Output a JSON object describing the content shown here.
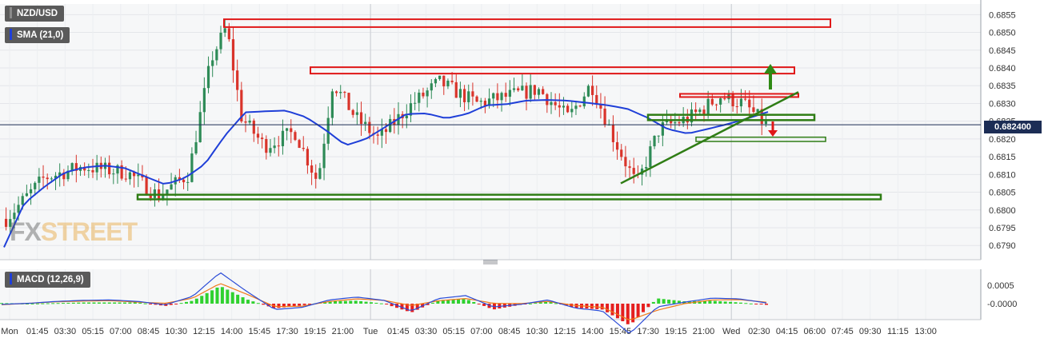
{
  "symbol": "NZD/USD",
  "indicator_label": "SMA (21,0)",
  "macd_label": "MACD (12,26,9)",
  "current_price": "0.682400",
  "watermark": "FXSTREET",
  "colors": {
    "bull": "#2e8b57",
    "bear": "#d9342b",
    "sma": "#1f3fd8",
    "resistance": "#e01818",
    "support": "#2f7d15",
    "macd_line": "#2a4bd7",
    "signal_line": "#f07a1a",
    "hist_pos": "#2fd12f",
    "hist_neg": "#e51f1f"
  },
  "chart_data": {
    "type": "candlestick",
    "price_axis_ticks": [
      "0.6855",
      "0.6850",
      "0.6845",
      "0.6840",
      "0.6835",
      "0.6830",
      "0.6825",
      "0.6820",
      "0.6815",
      "0.6810",
      "0.6805",
      "0.6800",
      "0.6795",
      "0.6790"
    ],
    "ylim": [
      0.6786,
      0.6858
    ],
    "macd_axis_ticks": [
      "0.0005",
      "-0.0000"
    ],
    "time_axis_labels": [
      "Mon",
      "01:45",
      "03:30",
      "05:15",
      "07:00",
      "08:45",
      "10:30",
      "12:15",
      "14:00",
      "15:45",
      "17:30",
      "19:15",
      "21:00",
      "Tue",
      "01:45",
      "03:30",
      "05:15",
      "07:00",
      "08:45",
      "10:30",
      "12:15",
      "14:00",
      "15:45",
      "17:30",
      "19:15",
      "21:00",
      "Wed",
      "02:30",
      "04:15",
      "06:00",
      "07:45",
      "09:30",
      "11:15",
      "13:00"
    ],
    "sma_period": 21,
    "sma_values": [
      0.67895,
      0.68018,
      0.68065,
      0.68105,
      0.6812,
      0.68125,
      0.68118,
      0.68095,
      0.68072,
      0.6809,
      0.6813,
      0.6821,
      0.68275,
      0.68278,
      0.6828,
      0.68262,
      0.68225,
      0.68182,
      0.682,
      0.68235,
      0.6827,
      0.68272,
      0.68258,
      0.6827,
      0.68295,
      0.68298,
      0.68308,
      0.6831,
      0.68308,
      0.68302,
      0.68295,
      0.68285,
      0.6826,
      0.68228,
      0.68215,
      0.68228,
      0.68242,
      0.68258,
      0.68276
    ],
    "trendline": {
      "from": 0.68075,
      "to": 0.68332
    },
    "zones": {
      "resistance": [
        {
          "low": 0.68515,
          "high": 0.68537
        },
        {
          "low": 0.68384,
          "high": 0.68402
        },
        {
          "low": 0.68318,
          "high": 0.68327
        }
      ],
      "support": [
        {
          "low": 0.68253,
          "high": 0.68268
        },
        {
          "low": 0.68193,
          "high": 0.68205
        },
        {
          "low": 0.6803,
          "high": 0.68043
        }
      ]
    },
    "macd_line": [
      -2e-05,
      1e-05,
      6e-05,
      9e-05,
      0.0001,
      6e-05,
      -3e-05,
      0.0002,
      0.00085,
      0.00032,
      -0.00016,
      -0.0001,
      0.0001,
      0.00018,
      9e-05,
      -0.0002,
      0.00014,
      0.00022,
      -9e-05,
      -2e-05,
      0.0001,
      -0.00012,
      -0.0002,
      -0.00082,
      -9e-05,
      4e-05,
      0.00015,
      0.00013,
      2e-05
    ],
    "signal_line": [
      -3e-05,
      1e-05,
      5e-05,
      7e-05,
      8e-05,
      4e-05,
      1e-05,
      0.00015,
      0.00055,
      0.00025,
      -8e-05,
      -7e-05,
      6e-05,
      0.00013,
      9e-05,
      -5e-05,
      8e-05,
      0.00014,
      1e-05,
      0.0,
      6e-05,
      -5e-05,
      -0.0001,
      -0.00045,
      -0.00018,
      0.0,
      0.0001,
      0.00011,
      4e-05
    ]
  }
}
